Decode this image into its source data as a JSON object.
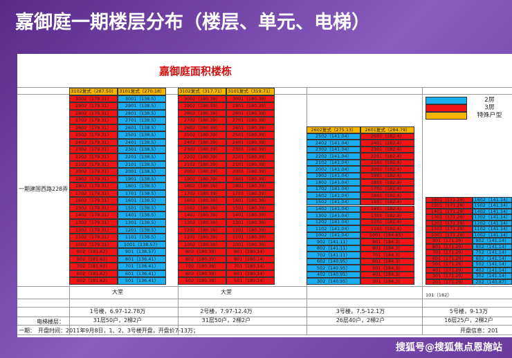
{
  "header": {
    "title": "嘉御庭一期楼层分布（楼层、单元、电梯）"
  },
  "sheet": {
    "title": "嘉御庭面积楼栋",
    "phase_label": "一期建国西路228弄",
    "legend": [
      {
        "label": "2房",
        "color": "#1aaef0"
      },
      {
        "label": "3房",
        "color": "#f01414"
      },
      {
        "label": "特殊户型",
        "color": "#f5b400"
      }
    ],
    "buildings": [
      {
        "header": [
          "3102复式（287.50）",
          "3101复式（270.18）"
        ],
        "columns": [
          {
            "color": "#f01414",
            "cells": [
              "3002（179.31）",
              "2902（179.31）",
              "2802（179.31）",
              "2702（179.31）",
              "2602（179.31）",
              "2502（179.31）",
              "2402（179.31）",
              "2302（179.31）",
              "2202（179.31）",
              "2102（179.31）",
              "2002（179.31）",
              "1902（179.31）",
              "1802（179.31）",
              "1702（179.31）",
              "1602（179.31）",
              "1502（179.31）",
              "1402（179.31）",
              "1302（179.31）",
              "1202（179.31）",
              "1102（179.31）",
              "1002（179.31）",
              "902（181.62）",
              "802（181.62）",
              "702（181.62）",
              "602（181.62）",
              "502（181.62）"
            ]
          },
          {
            "color": "#1aaef0",
            "cells": [
              "3001（138.5）",
              "2901（138.5）",
              "2801（138.5）",
              "2701（138.5）",
              "2601（138.5）",
              "2501（138.5）",
              "2401（138.5）",
              "2301（138.5）",
              "2201（138.5）",
              "2101（138.5）",
              "2001（138.5）",
              "1901（138.5）",
              "1801（138.5）",
              "1701（138.5）",
              "1601（138.5）",
              "1501（138.5）",
              "1401（138.5）",
              "1301（138.5）",
              "1201（138.5）",
              "1101（138.5）",
              "1001（138.57）",
              "901（138.57）",
              "801（136.41）",
              "701（136.41）",
              "601（136.41）",
              "501（136.41）"
            ]
          }
        ],
        "lobby": "大堂",
        "name": "1号楼，6.97-12.78万",
        "info": "31层50户，2梯2户"
      },
      {
        "header": [
          "3102复式（317.71）",
          "3101复式（319.71）"
        ],
        "columns": [
          {
            "color": "#f01414",
            "cells": [
              "3002（180.39）",
              "2902（180.39）",
              "2802（180.39）",
              "2702（180.39）",
              "2602（180.39）",
              "2502（180.39）",
              "2402（180.39）",
              "2302（180.39）",
              "2202（180.39）",
              "2102（180.39）",
              "2002（180.39）",
              "1902（180.39）",
              "1802（180.39）",
              "1702（180.39）",
              "1602（180.39）",
              "1502（180.39）",
              "1402（180.39）",
              "1302（180.39）",
              "1202（180.39）",
              "1102（180.39）",
              "1002（180.39）",
              "902（180.39）",
              "802（180.39）",
              "702（180.39）",
              "602（180.39）",
              "502（180.39）"
            ]
          },
          {
            "color": "#f01414",
            "cells": [
              "3001（180.39）",
              "2901（180.39）",
              "2801（180.39）",
              "2701（180.39）",
              "2601（180.39）",
              "2501（180.39）",
              "2401（180.39）",
              "2301（180.39）",
              "2201（180.39）",
              "2101（180.39）",
              "2001（180.39）",
              "1901（180.39）",
              "1801（180.39）",
              "1701（180.39）",
              "1601（180.39）",
              "1501（180.39）",
              "1401（180.39）",
              "1301（180.39）",
              "1201（180.39）",
              "1101（180.39）",
              "1001（180.39）",
              "901（180.14）",
              "801（180.14）",
              "701（180.14）",
              "601（180.14）",
              "501（180.14）"
            ]
          }
        ],
        "lobby": "大堂",
        "name": "2号楼，7.97-12.4万",
        "info": "31层50户，2梯2户"
      },
      {
        "header": [
          "2602复式（275.13）",
          "2601复式（284.79）"
        ],
        "columns": [
          {
            "color": "#1aaef0",
            "cells": [
              "2502（141.04）",
              "2402（141.04）",
              "2302（141.04）",
              "2202（141.04）",
              "2102（141.04）",
              "2002（141.04）",
              "1902（141.04）",
              "1802（141.04）",
              "1702（141.04）",
              "1602（141.04）",
              "1502（141.04）",
              "1402（141.04）",
              "1302（141.04）",
              "1202（141.04）",
              "1102（141.04）",
              "1002（141.04）",
              "902（141.11）",
              "802（141.11）",
              "702（141.11）",
              "602（140.95）",
              "502（140.95）",
              "402（140.95）",
              "302（140.95）"
            ]
          },
          {
            "color": "#f01414",
            "cells": [
              "2501（182.4）",
              "2401（182.4）",
              "2301（182.4）",
              "2201（182.4）",
              "2101（182.4）",
              "2001（182.4）",
              "1901（182.4）",
              "1801（182.4）",
              "1701（182.4）",
              "1601（182.4）",
              "1501（182.4）",
              "1401（182.4）",
              "1301（182.4）",
              "1201（182.4）",
              "1101（182.4）",
              "1001（184.65）",
              "901（184.3）",
              "801（184.3）",
              "701（184.3）",
              "601（184.3）",
              "501（184.3）",
              "401（184.3）",
              "301（184.3）"
            ]
          }
        ],
        "name": "3号楼，7.5-12.1万",
        "info": "26层40户，2梯2户"
      },
      {
        "columns": [
          {
            "color": "#f01414",
            "cells": [
              "1601（171.29）",
              "1501（171.29）",
              "1401（171.29）",
              "1301（171.29）",
              "1201（171.29）",
              "1101（171.29）",
              "1001（171.29）",
              "901（171.29）",
              "801（171.29）",
              "701（171.29）",
              "601（171.29）",
              "501（171.29）",
              "401（171.29）",
              "301（171.29）",
              "201（171.29）"
            ]
          },
          {
            "color": "#1aaef0",
            "cells": [
              "1602（141.14）",
              "1502（141.14）",
              "1402（141.14）",
              "1302（141.14）",
              "1202（141.14）",
              "1102（141.14）",
              "1002（141.14）",
              "902（141.14）",
              "802（141.14）",
              "702（141.14）",
              "602（141.14）",
              "502（141.14）",
              "402（141.14）",
              "302（141.14）",
              "202（140.87）"
            ]
          }
        ],
        "extra": "101（182）",
        "name": "5号楼，9-13万",
        "info": "16层25户，2梯2户"
      }
    ],
    "elevator_label": "电梯楼层：",
    "phase": "一期：",
    "opening": "开盘时间：2011年9月8日，1、2、3号楼开盘，开盘价7-13万；",
    "opening2": "开盘信息：201"
  },
  "watermark": "搜狐号@搜狐焦点恩施站"
}
